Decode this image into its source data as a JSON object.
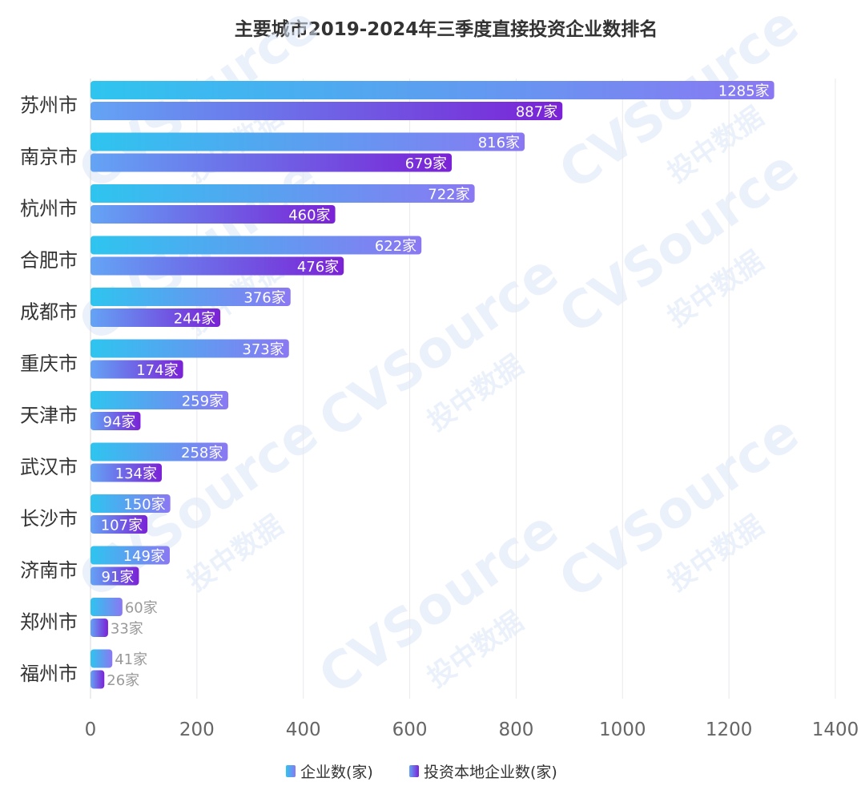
{
  "chart_data": {
    "type": "bar",
    "orientation": "horizontal",
    "title": "主要城市2019-2024年三季度直接投资企业数排名",
    "categories": [
      "苏州市",
      "南京市",
      "杭州市",
      "合肥市",
      "成都市",
      "重庆市",
      "天津市",
      "武汉市",
      "长沙市",
      "济南市",
      "郑州市",
      "福州市"
    ],
    "series": [
      {
        "name": "企业数(家)",
        "values": [
          1285,
          816,
          722,
          622,
          376,
          373,
          259,
          258,
          150,
          149,
          60,
          41
        ],
        "labels": [
          "1285家",
          "816家",
          "722家",
          "622家",
          "376家",
          "373家",
          "259家",
          "258家",
          "150家",
          "149家",
          "60家",
          "41家"
        ],
        "color_start": "#2ec5ef",
        "color_end": "#8a78f2"
      },
      {
        "name": "投资本地企业数(家)",
        "values": [
          887,
          679,
          460,
          476,
          244,
          174,
          94,
          134,
          107,
          91,
          33,
          26
        ],
        "labels": [
          "887家",
          "679家",
          "460家",
          "476家",
          "244家",
          "174家",
          "94家",
          "134家",
          "107家",
          "91家",
          "33家",
          "26家"
        ],
        "color_start": "#64a4f5",
        "color_end": "#7a22d6"
      }
    ],
    "xlim": [
      0,
      1400
    ],
    "xticks": [
      "0",
      "200",
      "400",
      "600",
      "800",
      "1000",
      "1200",
      "1400"
    ],
    "grid": true,
    "legend_position": "bottom-center",
    "watermark": "CVSource 投中数据"
  }
}
